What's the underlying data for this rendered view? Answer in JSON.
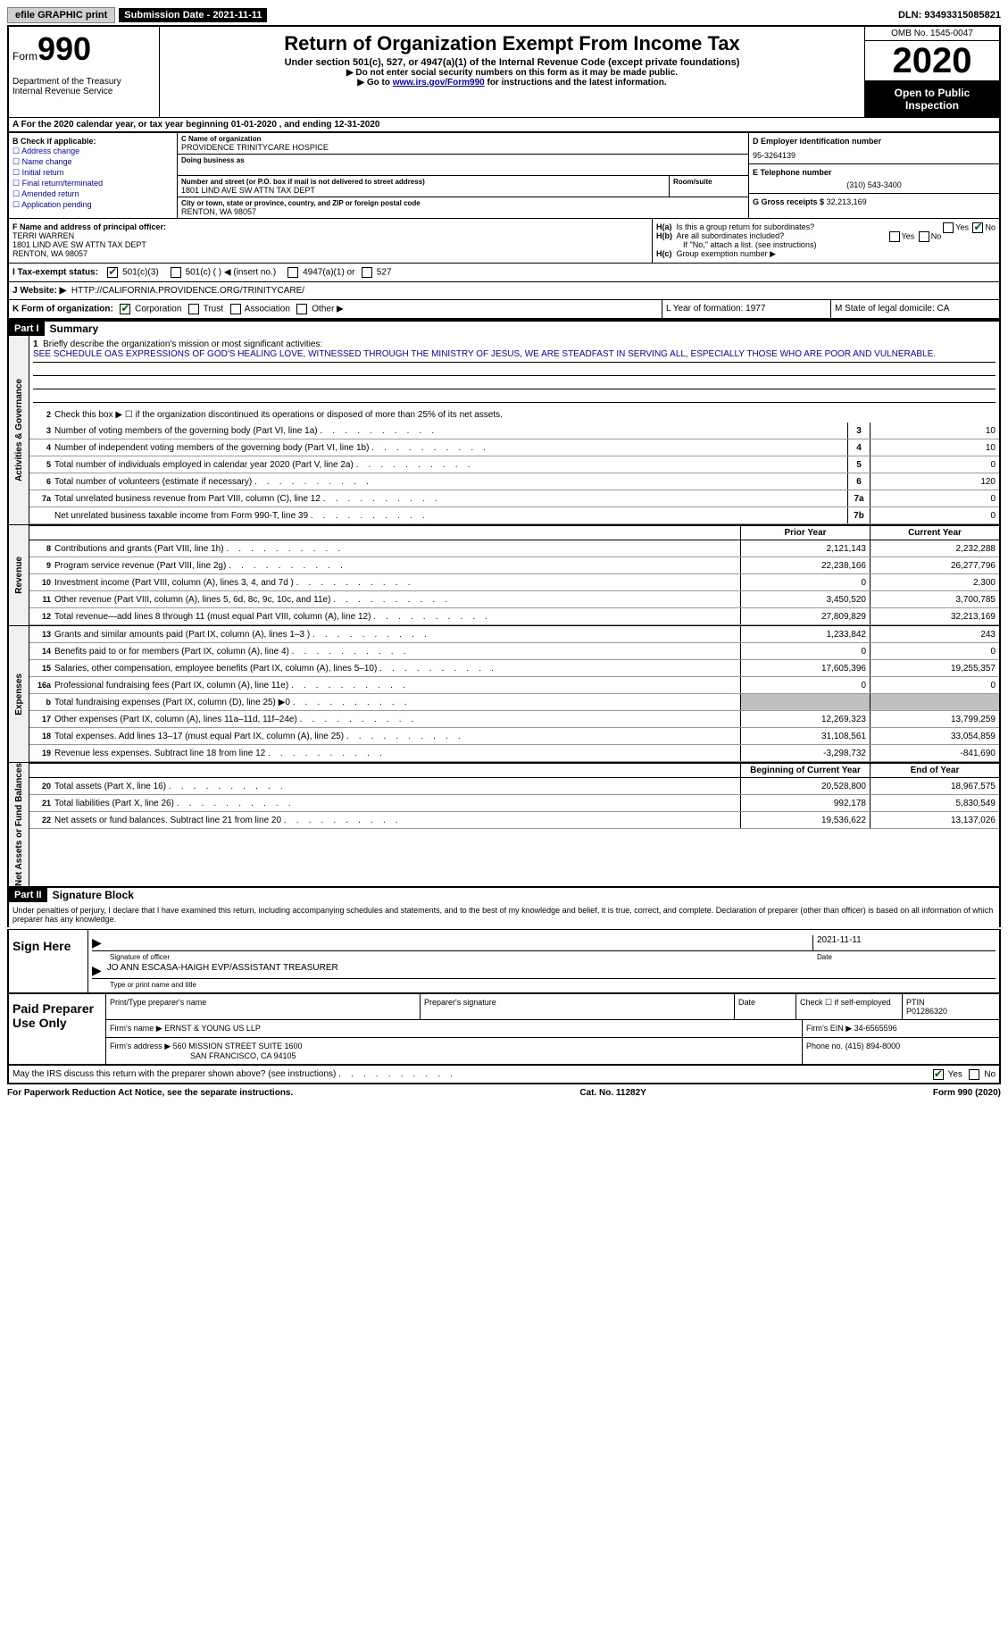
{
  "topbar": {
    "efile": "efile GRAPHIC print",
    "submission": "Submission Date - 2021-11-11",
    "dln": "DLN: 93493315085821"
  },
  "header": {
    "form_word": "Form",
    "form_num": "990",
    "dept": "Department of the Treasury\nInternal Revenue Service",
    "title": "Return of Organization Exempt From Income Tax",
    "subtitle": "Under section 501(c), 527, or 4947(a)(1) of the Internal Revenue Code (except private foundations)",
    "arrow1": "▶ Do not enter social security numbers on this form as it may be made public.",
    "arrow2_pre": "▶ Go to ",
    "arrow2_link": "www.irs.gov/Form990",
    "arrow2_post": " for instructions and the latest information.",
    "omb": "OMB No. 1545-0047",
    "year": "2020",
    "open": "Open to Public Inspection"
  },
  "period": "A For the 2020 calendar year, or tax year beginning 01-01-2020    , and ending 12-31-2020",
  "box_b": {
    "title": "B Check if applicable:",
    "items": [
      "Address change",
      "Name change",
      "Initial return",
      "Final return/terminated",
      "Amended return",
      "Application pending"
    ]
  },
  "box_c": {
    "name_label": "C Name of organization",
    "name": "PROVIDENCE TRINITYCARE HOSPICE",
    "dba_label": "Doing business as",
    "addr_label": "Number and street (or P.O. box if mail is not delivered to street address)",
    "room_label": "Room/suite",
    "addr": "1801 LIND AVE SW ATTN TAX DEPT",
    "city_label": "City or town, state or province, country, and ZIP or foreign postal code",
    "city": "RENTON, WA  98057"
  },
  "box_d": {
    "label": "D Employer identification number",
    "val": "95-3264139"
  },
  "box_e": {
    "label": "E Telephone number",
    "val": "(310) 543-3400"
  },
  "box_g": {
    "label": "G Gross receipts $",
    "val": "32,213,169"
  },
  "box_f": {
    "label": "F Name and address of principal officer:",
    "name": "TERRI WARREN",
    "addr": "1801 LIND AVE SW ATTN TAX DEPT",
    "city": "RENTON, WA  98057"
  },
  "box_h": {
    "a": "Is this a group return for subordinates?",
    "b": "Are all subordinates included?",
    "note": "If \"No,\" attach a list. (see instructions)",
    "c": "Group exemption number ▶"
  },
  "row_i": {
    "label": "I    Tax-exempt status:",
    "opt1": "501(c)(3)",
    "opt2": "501(c) (  ) ◀ (insert no.)",
    "opt3": "4947(a)(1) or",
    "opt4": "527"
  },
  "row_j": {
    "label": "J    Website: ▶",
    "val": "HTTP://CALIFORNIA.PROVIDENCE.ORG/TRINITYCARE/"
  },
  "row_k": {
    "label": "K Form of organization:",
    "opts": [
      "Corporation",
      "Trust",
      "Association",
      "Other ▶"
    ]
  },
  "row_l": "L Year of formation: 1977",
  "row_m": "M State of legal domicile: CA",
  "part1": {
    "header": "Part I",
    "title": "Summary"
  },
  "summary": {
    "line1_label": "Briefly describe the organization's mission or most significant activities:",
    "line1_text": "SEE SCHEDULE OAS EXPRESSIONS OF GOD'S HEALING LOVE, WITNESSED THROUGH THE MINISTRY OF JESUS, WE ARE STEADFAST IN SERVING ALL, ESPECIALLY THOSE WHO ARE POOR AND VULNERABLE.",
    "line2": "Check this box ▶ ☐  if the organization discontinued its operations or disposed of more than 25% of its net assets.",
    "rows_gov": [
      {
        "n": "3",
        "d": "Number of voting members of the governing body (Part VI, line 1a)",
        "b": "3",
        "v": "10"
      },
      {
        "n": "4",
        "d": "Number of independent voting members of the governing body (Part VI, line 1b)",
        "b": "4",
        "v": "10"
      },
      {
        "n": "5",
        "d": "Total number of individuals employed in calendar year 2020 (Part V, line 2a)",
        "b": "5",
        "v": "0"
      },
      {
        "n": "6",
        "d": "Total number of volunteers (estimate if necessary)",
        "b": "6",
        "v": "120"
      },
      {
        "n": "7a",
        "d": "Total unrelated business revenue from Part VIII, column (C), line 12",
        "b": "7a",
        "v": "0"
      },
      {
        "n": "",
        "d": "Net unrelated business taxable income from Form 990-T, line 39",
        "b": "7b",
        "v": "0"
      }
    ],
    "hdr_prior": "Prior Year",
    "hdr_curr": "Current Year",
    "rows_rev": [
      {
        "n": "8",
        "d": "Contributions and grants (Part VIII, line 1h)",
        "p": "2,121,143",
        "c": "2,232,288"
      },
      {
        "n": "9",
        "d": "Program service revenue (Part VIII, line 2g)",
        "p": "22,238,166",
        "c": "26,277,796"
      },
      {
        "n": "10",
        "d": "Investment income (Part VIII, column (A), lines 3, 4, and 7d )",
        "p": "0",
        "c": "2,300"
      },
      {
        "n": "11",
        "d": "Other revenue (Part VIII, column (A), lines 5, 6d, 8c, 9c, 10c, and 11e)",
        "p": "3,450,520",
        "c": "3,700,785"
      },
      {
        "n": "12",
        "d": "Total revenue—add lines 8 through 11 (must equal Part VIII, column (A), line 12)",
        "p": "27,809,829",
        "c": "32,213,169"
      }
    ],
    "rows_exp": [
      {
        "n": "13",
        "d": "Grants and similar amounts paid (Part IX, column (A), lines 1–3 )",
        "p": "1,233,842",
        "c": "243"
      },
      {
        "n": "14",
        "d": "Benefits paid to or for members (Part IX, column (A), line 4)",
        "p": "0",
        "c": "0"
      },
      {
        "n": "15",
        "d": "Salaries, other compensation, employee benefits (Part IX, column (A), lines 5–10)",
        "p": "17,605,396",
        "c": "19,255,357"
      },
      {
        "n": "16a",
        "d": "Professional fundraising fees (Part IX, column (A), line 11e)",
        "p": "0",
        "c": "0"
      },
      {
        "n": "b",
        "d": "Total fundraising expenses (Part IX, column (D), line 25) ▶0",
        "p": "",
        "c": "",
        "shade": true
      },
      {
        "n": "17",
        "d": "Other expenses (Part IX, column (A), lines 11a–11d, 11f–24e)",
        "p": "12,269,323",
        "c": "13,799,259"
      },
      {
        "n": "18",
        "d": "Total expenses. Add lines 13–17 (must equal Part IX, column (A), line 25)",
        "p": "31,108,561",
        "c": "33,054,859"
      },
      {
        "n": "19",
        "d": "Revenue less expenses. Subtract line 18 from line 12",
        "p": "-3,298,732",
        "c": "-841,690"
      }
    ],
    "hdr_beg": "Beginning of Current Year",
    "hdr_end": "End of Year",
    "rows_net": [
      {
        "n": "20",
        "d": "Total assets (Part X, line 16)",
        "p": "20,528,800",
        "c": "18,967,575"
      },
      {
        "n": "21",
        "d": "Total liabilities (Part X, line 26)",
        "p": "992,178",
        "c": "5,830,549"
      },
      {
        "n": "22",
        "d": "Net assets or fund balances. Subtract line 21 from line 20",
        "p": "19,536,622",
        "c": "13,137,026"
      }
    ],
    "vtabs": {
      "gov": "Activities & Governance",
      "rev": "Revenue",
      "exp": "Expenses",
      "net": "Net Assets or Fund Balances"
    }
  },
  "part2": {
    "header": "Part II",
    "title": "Signature Block",
    "penalties": "Under penalties of perjury, I declare that I have examined this return, including accompanying schedules and statements, and to the best of my knowledge and belief, it is true, correct, and complete. Declaration of preparer (other than officer) is based on all information of which preparer has any knowledge.",
    "sign_here": "Sign Here",
    "sig_officer": "Signature of officer",
    "date_label": "Date",
    "date_val": "2021-11-11",
    "name_title": "JO ANN ESCASA-HAIGH  EVP/ASSISTANT TREASURER",
    "type_label": "Type or print name and title"
  },
  "paid": {
    "title": "Paid Preparer Use Only",
    "h1": "Print/Type preparer's name",
    "h2": "Preparer's signature",
    "h3": "Date",
    "h4_a": "Check ☐ if self-employed",
    "h4_b": "PTIN",
    "ptin": "P01286320",
    "firm_name_l": "Firm's name    ▶",
    "firm_name": "ERNST & YOUNG US LLP",
    "firm_ein_l": "Firm's EIN ▶",
    "firm_ein": "34-6565596",
    "firm_addr_l": "Firm's address ▶",
    "firm_addr1": "560 MISSION STREET SUITE 1600",
    "firm_addr2": "SAN FRANCISCO, CA  94105",
    "phone_l": "Phone no.",
    "phone": "(415) 894-8000",
    "discuss": "May the IRS discuss this return with the preparer shown above? (see instructions)"
  },
  "footer": {
    "left": "For Paperwork Reduction Act Notice, see the separate instructions.",
    "mid": "Cat. No. 11282Y",
    "right": "Form 990 (2020)"
  }
}
